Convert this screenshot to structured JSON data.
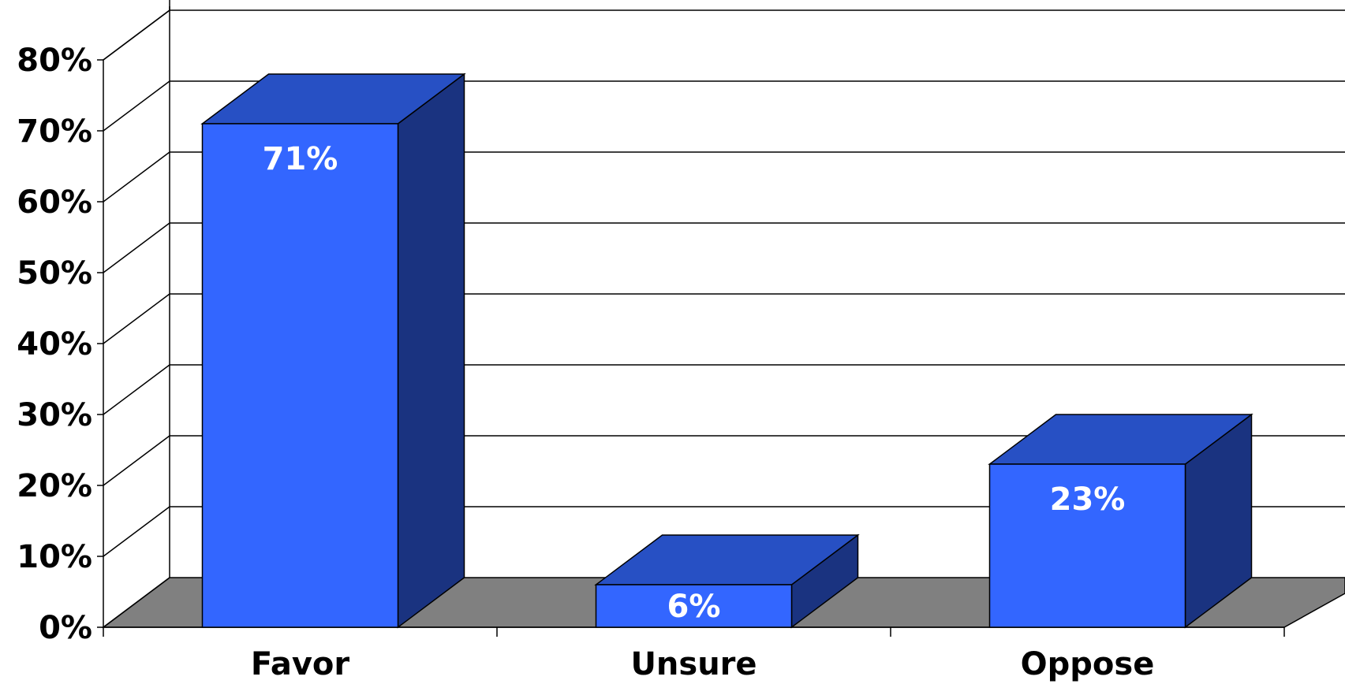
{
  "chart_data": {
    "type": "bar",
    "title": "",
    "xlabel": "",
    "ylabel": "",
    "categories": [
      "Favor",
      "Unsure",
      "Oppose"
    ],
    "values": [
      71,
      6,
      23
    ],
    "data_labels": [
      "71%",
      "6%",
      "23%"
    ],
    "ylim": [
      0,
      80
    ],
    "yticks": [
      0,
      10,
      20,
      30,
      40,
      50,
      60,
      70,
      80
    ],
    "ytick_labels": [
      "0%",
      "10%",
      "20%",
      "30%",
      "40%",
      "50%",
      "60%",
      "70%",
      "80%"
    ],
    "grid": true,
    "legend": "none",
    "style": "3d",
    "colors": {
      "bar_front": "#3366ff",
      "bar_top": "#2750c4",
      "bar_side": "#1a3380",
      "floor": "#808080",
      "grid": "#000000"
    }
  }
}
